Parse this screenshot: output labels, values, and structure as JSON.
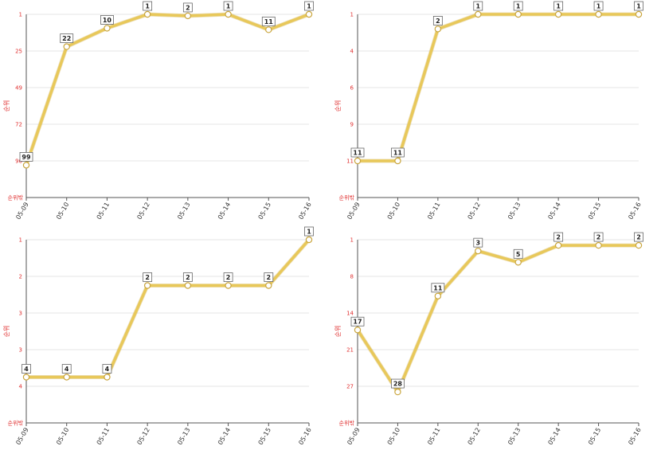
{
  "colors": {
    "line": "#e8c85a",
    "line_shadow": "#c9a53c",
    "tick_text": "#e03030",
    "grid": "#e4e4e4"
  },
  "chart_data": [
    {
      "type": "line",
      "ylabel": "순위",
      "y_bottom_label": "순위밖",
      "y_inverted": true,
      "categories": [
        "05-09",
        "05-10",
        "05-11",
        "05-12",
        "05-13",
        "05-14",
        "05-15",
        "05-16"
      ],
      "y_ticks": [
        "1",
        "25",
        "49",
        "72",
        "96"
      ],
      "ylim": [
        1,
        120
      ],
      "series": [
        {
          "values": [
            99,
            22,
            10,
            1,
            2,
            1,
            11,
            1
          ]
        }
      ],
      "grid": true
    },
    {
      "type": "line",
      "ylabel": "순위",
      "y_bottom_label": "순위밖",
      "y_inverted": true,
      "categories": [
        "05-09",
        "05-10",
        "05-11",
        "05-12",
        "05-13",
        "05-14",
        "05-15",
        "05-16"
      ],
      "y_ticks": [
        "1",
        "4",
        "6",
        "9",
        "11"
      ],
      "ylim": [
        1,
        13.5
      ],
      "series": [
        {
          "values": [
            11,
            11,
            2,
            1,
            1,
            1,
            1,
            1
          ]
        }
      ],
      "grid": true
    },
    {
      "type": "line",
      "ylabel": "순위",
      "y_bottom_label": "순위밖",
      "y_inverted": true,
      "categories": [
        "05-09",
        "05-10",
        "05-11",
        "05-12",
        "05-13",
        "05-14",
        "05-15",
        "05-16"
      ],
      "y_ticks": [
        "1",
        "2",
        "3",
        "3",
        "4"
      ],
      "ylim": [
        1,
        5.0
      ],
      "series": [
        {
          "values": [
            4,
            4,
            4,
            2,
            2,
            2,
            2,
            1
          ]
        }
      ],
      "grid": true
    },
    {
      "type": "line",
      "ylabel": "순위",
      "y_bottom_label": "순위밖",
      "y_inverted": true,
      "categories": [
        "05-09",
        "05-10",
        "05-11",
        "05-12",
        "05-13",
        "05-14",
        "05-15",
        "05-16"
      ],
      "y_ticks": [
        "1",
        "8",
        "14",
        "21",
        "27"
      ],
      "ylim": [
        1,
        33.5
      ],
      "series": [
        {
          "values": [
            17,
            28,
            11,
            3,
            5,
            2,
            2,
            2
          ]
        }
      ],
      "grid": true
    }
  ]
}
